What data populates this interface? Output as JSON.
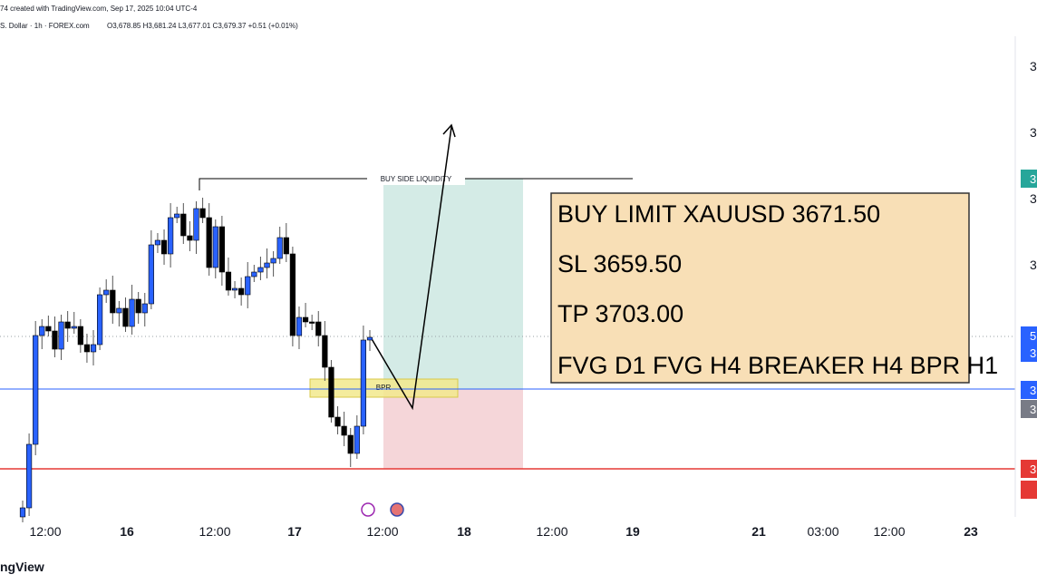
{
  "header": {
    "credit": "74 created with TradingView.com, Sep 17, 2025 10:04 UTC-4",
    "symbol": "S. Dollar · 1h · FOREX.com",
    "ohlc": "O3,678.85 H3,681.24 L3,677.01 C3,679.37 +0.51 (+0.01%)"
  },
  "time_axis": [
    "12:00",
    "16",
    "12:00",
    "17",
    "12:00",
    "18",
    "12:00",
    "19",
    "21",
    "03:00",
    "12:00",
    "23"
  ],
  "price_axis": [
    "3",
    "3",
    "3",
    "3",
    "3",
    "5",
    "3",
    "3",
    "3",
    "3"
  ],
  "annotations": {
    "liquidity": "BUY SIDE LIQUIDITY",
    "bpr": "BPR"
  },
  "trade_box": [
    "BUY LIMIT XAUUSD 3671.50",
    "SL 3659.50",
    "TP 3703.00",
    "FVG D1 FVG H4 BREAKER H4 BPR H1"
  ],
  "footer": "ngView"
}
